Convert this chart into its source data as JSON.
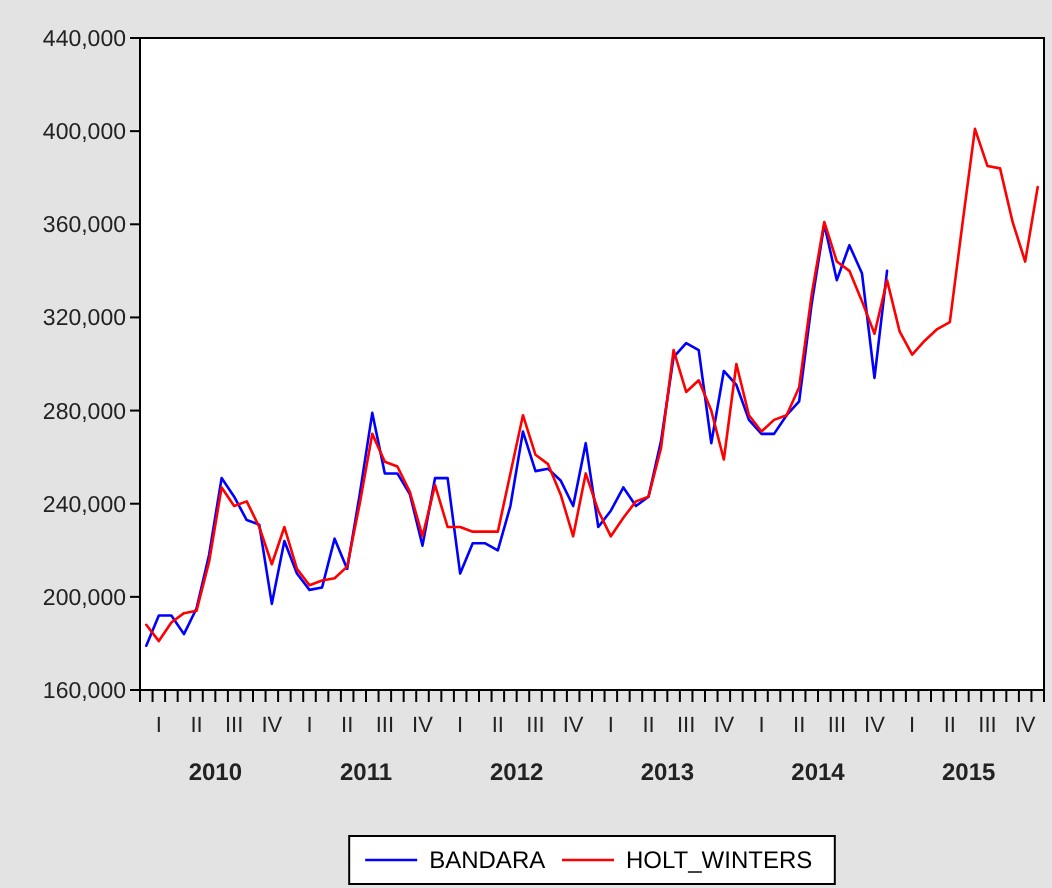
{
  "chart_data": {
    "type": "line",
    "categories": [
      null,
      "I",
      null,
      null,
      "II",
      null,
      null,
      "III",
      null,
      null,
      "IV",
      null,
      null,
      "I",
      null,
      null,
      "II",
      null,
      null,
      "III",
      null,
      null,
      "IV",
      null,
      null,
      "I",
      null,
      null,
      "II",
      null,
      null,
      "III",
      null,
      null,
      "IV",
      null,
      null,
      "I",
      null,
      null,
      "II",
      null,
      null,
      "III",
      null,
      null,
      "IV",
      null,
      null,
      "I",
      null,
      null,
      "II",
      null,
      null,
      "III",
      null,
      null,
      "IV",
      null,
      null,
      "I",
      null,
      null,
      "II",
      null,
      null,
      "III",
      null,
      null,
      "IV",
      null
    ],
    "series": [
      {
        "name": "BANDARA",
        "color": "#0000ff",
        "values": [
          179000,
          192000,
          192000,
          184000,
          195000,
          218000,
          251000,
          243000,
          233000,
          231000,
          197000,
          224000,
          210000,
          203000,
          204000,
          225000,
          212000,
          244000,
          279000,
          253000,
          253000,
          244000,
          222000,
          251000,
          251000,
          210000,
          223000,
          223000,
          220000,
          239000,
          271000,
          254000,
          255000,
          250000,
          239000,
          266000,
          230000,
          237000,
          247000,
          239000,
          243000,
          267000,
          303000,
          309000,
          306000,
          266000,
          297000,
          291000,
          276000,
          270000,
          270000,
          278000,
          284000,
          326000,
          360000,
          336000,
          351000,
          339000,
          294000,
          340000,
          null,
          null,
          null,
          null,
          null,
          null,
          null,
          null,
          null,
          null,
          null,
          null
        ]
      },
      {
        "name": "HOLT_WINTERS",
        "color": "#ff0000",
        "values": [
          188000,
          181000,
          189000,
          193000,
          194000,
          215000,
          247000,
          239000,
          241000,
          230000,
          214000,
          230000,
          212000,
          205000,
          207000,
          208000,
          213000,
          240000,
          270000,
          258000,
          256000,
          245000,
          226000,
          248000,
          230000,
          230000,
          228000,
          228000,
          228000,
          253000,
          278000,
          261000,
          257000,
          244000,
          226000,
          253000,
          237000,
          226000,
          234000,
          241000,
          243000,
          264000,
          306000,
          288000,
          293000,
          280000,
          259000,
          300000,
          278000,
          271000,
          276000,
          278000,
          290000,
          330000,
          361000,
          344000,
          340000,
          327000,
          313000,
          336000,
          314000,
          304000,
          310000,
          315000,
          318000,
          360000,
          401000,
          385000,
          384000,
          361000,
          344000,
          376000
        ]
      }
    ],
    "annotations": [
      "2010",
      "2011",
      "2012",
      "2013",
      "2014",
      "2015"
    ],
    "ylim": [
      160000,
      440000
    ],
    "yticks": [
      {
        "value": 160000,
        "label": "160,000"
      },
      {
        "value": 200000,
        "label": "200,000"
      },
      {
        "value": 240000,
        "label": "240,000"
      },
      {
        "value": 280000,
        "label": "280,000"
      },
      {
        "value": 320000,
        "label": "320,000"
      },
      {
        "value": 360000,
        "label": "360,000"
      },
      {
        "value": 400000,
        "label": "400,000"
      },
      {
        "value": 440000,
        "label": "440,000"
      }
    ],
    "legend": "bottom",
    "line_style": "solid"
  }
}
